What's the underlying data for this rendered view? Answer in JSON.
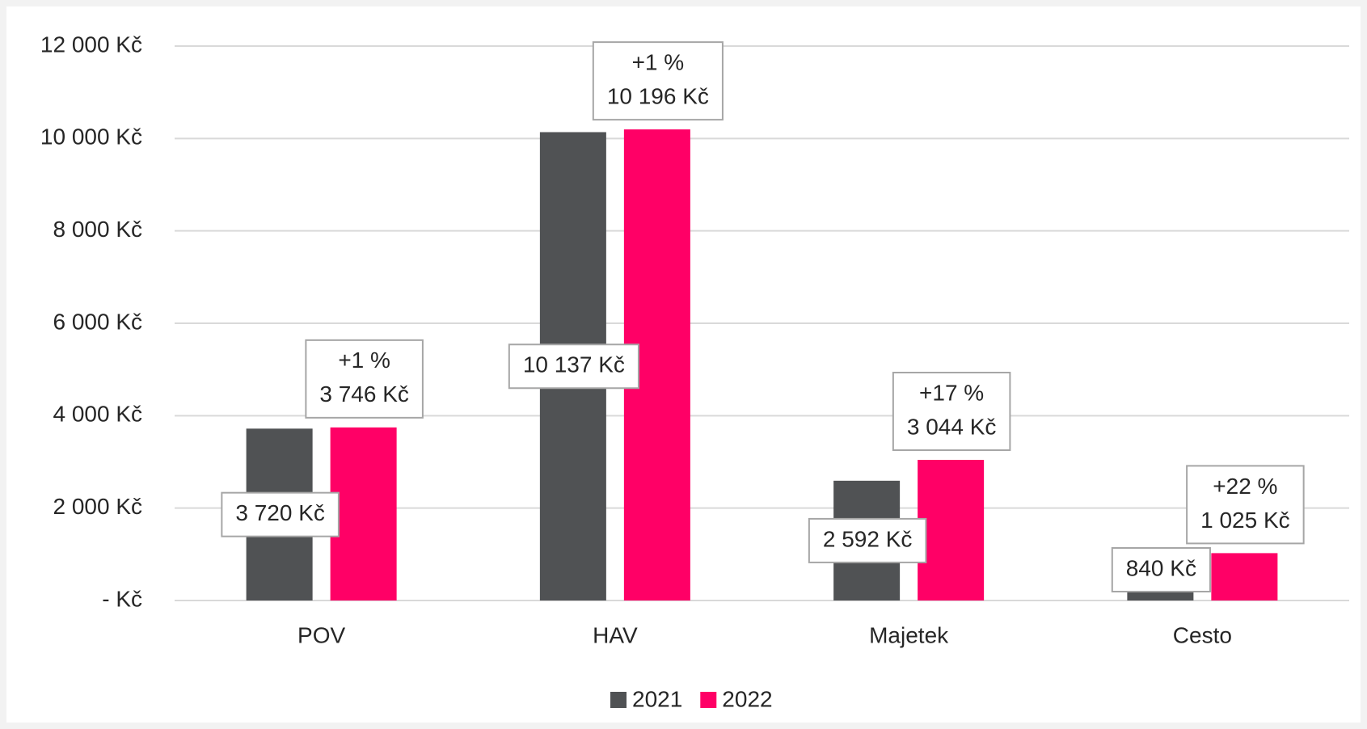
{
  "chart_data": {
    "type": "bar",
    "categories": [
      "POV",
      "HAV",
      "Majetek",
      "Cesto"
    ],
    "series": [
      {
        "name": "2021",
        "color": "#505254",
        "values": [
          3720,
          10137,
          2592,
          840
        ],
        "value_labels": [
          "3 720 Kč",
          "10 137 Kč",
          "2 592 Kč",
          "840 Kč"
        ]
      },
      {
        "name": "2022",
        "color": "#ff0066",
        "values": [
          3746,
          10196,
          3044,
          1025
        ],
        "value_labels": [
          "3 746 Kč",
          "10 196 Kč",
          "3 044 Kč",
          "1 025 Kč"
        ]
      }
    ],
    "annotations": [
      "+1 %",
      "+1 %",
      "+17 %",
      "+22 %"
    ],
    "ylim": [
      0,
      12000
    ],
    "yticks": [
      {
        "value": 0,
        "label": "-   Kč"
      },
      {
        "value": 2000,
        "label": "2 000 Kč"
      },
      {
        "value": 4000,
        "label": "4 000 Kč"
      },
      {
        "value": 6000,
        "label": "6 000 Kč"
      },
      {
        "value": 8000,
        "label": "8 000 Kč"
      },
      {
        "value": 10000,
        "label": "10 000 Kč"
      },
      {
        "value": 12000,
        "label": "12 000 Kč"
      }
    ],
    "grid": true,
    "legend": "bottom"
  }
}
